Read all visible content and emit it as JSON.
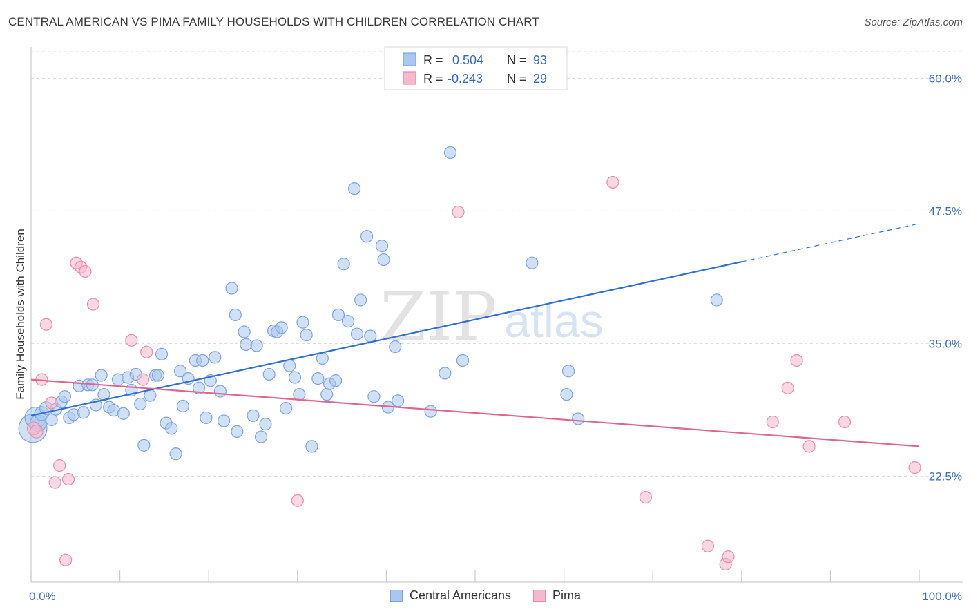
{
  "title": "CENTRAL AMERICAN VS PIMA FAMILY HOUSEHOLDS WITH CHILDREN CORRELATION CHART",
  "source": "Source: ZipAtlas.com",
  "watermark": {
    "zip": "ZIP",
    "atlas": "atlas"
  },
  "colors": {
    "blue": "#a9c8f0",
    "blue_stroke": "#7ba3dc",
    "blue_line": "#2f6fd0",
    "pink": "#f6b8cc",
    "pink_stroke": "#e98aa8",
    "pink_line": "#e06692",
    "tick": "#3c6fc4",
    "grid": "#d8d8d8"
  },
  "legend": {
    "rows": [
      {
        "r_label": "R =",
        "r_value": "0.504",
        "n_label": "N =",
        "n_value": "93",
        "series": "blue"
      },
      {
        "r_label": "R =",
        "r_value": "-0.243",
        "n_label": "N =",
        "n_value": "29",
        "series": "pink"
      }
    ]
  },
  "bottom_legend": {
    "items": [
      {
        "label": "Central Americans",
        "series": "blue"
      },
      {
        "label": "Pima",
        "series": "pink"
      }
    ]
  },
  "chart_data": {
    "type": "scatter",
    "title": "CENTRAL AMERICAN VS PIMA FAMILY HOUSEHOLDS WITH CHILDREN CORRELATION CHART",
    "xlabel": "",
    "ylabel": "Family Households with Children",
    "xlim": [
      0,
      100
    ],
    "ylim": [
      12.5,
      62.5
    ],
    "y_ticks": [
      {
        "v": 22.5,
        "label": "22.5%"
      },
      {
        "v": 35.0,
        "label": "35.0%"
      },
      {
        "v": 47.5,
        "label": "47.5%"
      },
      {
        "v": 60.0,
        "label": "60.0%"
      }
    ],
    "x_ticks": [
      {
        "v": 0,
        "label": "0.0%"
      },
      {
        "v": 100,
        "label": "100.0%"
      }
    ],
    "series": [
      {
        "name": "Central Americans",
        "color": "blue",
        "trend": {
          "x0": 0.0,
          "y0": 28.2,
          "x1": 80.0,
          "y1": 42.7,
          "x_dash_end": 100.0,
          "y_dash_end": 46.3
        },
        "points": [
          {
            "x": 0.2,
            "y": 27.0,
            "s": 2.4
          },
          {
            "x": 0.5,
            "y": 28.0,
            "s": 1.8
          },
          {
            "x": 0.8,
            "y": 27.5,
            "s": 1.4
          },
          {
            "x": 1.2,
            "y": 28.4,
            "s": 1.2
          },
          {
            "x": 1.7,
            "y": 28.9,
            "s": 1.1
          },
          {
            "x": 2.3,
            "y": 27.8,
            "s": 1
          },
          {
            "x": 2.8,
            "y": 28.8,
            "s": 1
          },
          {
            "x": 3.4,
            "y": 29.5,
            "s": 1
          },
          {
            "x": 3.8,
            "y": 30.0,
            "s": 1
          },
          {
            "x": 4.3,
            "y": 28.0,
            "s": 1
          },
          {
            "x": 4.8,
            "y": 28.3,
            "s": 1
          },
          {
            "x": 5.4,
            "y": 31.0,
            "s": 1
          },
          {
            "x": 5.9,
            "y": 28.5,
            "s": 1
          },
          {
            "x": 6.4,
            "y": 31.1,
            "s": 1
          },
          {
            "x": 6.9,
            "y": 31.1,
            "s": 1
          },
          {
            "x": 7.3,
            "y": 29.2,
            "s": 1
          },
          {
            "x": 7.9,
            "y": 32.0,
            "s": 1
          },
          {
            "x": 8.2,
            "y": 30.2,
            "s": 1
          },
          {
            "x": 8.8,
            "y": 29.0,
            "s": 1
          },
          {
            "x": 9.3,
            "y": 28.7,
            "s": 1
          },
          {
            "x": 9.8,
            "y": 31.6,
            "s": 1
          },
          {
            "x": 10.4,
            "y": 28.4,
            "s": 1
          },
          {
            "x": 10.9,
            "y": 31.8,
            "s": 1
          },
          {
            "x": 11.3,
            "y": 30.6,
            "s": 1
          },
          {
            "x": 11.8,
            "y": 32.1,
            "s": 1
          },
          {
            "x": 12.3,
            "y": 29.3,
            "s": 1
          },
          {
            "x": 12.7,
            "y": 25.4,
            "s": 1
          },
          {
            "x": 13.4,
            "y": 30.1,
            "s": 1
          },
          {
            "x": 14.0,
            "y": 32.0,
            "s": 1
          },
          {
            "x": 14.3,
            "y": 32.0,
            "s": 1
          },
          {
            "x": 14.7,
            "y": 34.0,
            "s": 1
          },
          {
            "x": 15.2,
            "y": 27.5,
            "s": 1
          },
          {
            "x": 15.8,
            "y": 27.0,
            "s": 1
          },
          {
            "x": 16.3,
            "y": 24.6,
            "s": 1
          },
          {
            "x": 16.8,
            "y": 32.4,
            "s": 1
          },
          {
            "x": 17.1,
            "y": 29.1,
            "s": 1
          },
          {
            "x": 17.7,
            "y": 31.7,
            "s": 1
          },
          {
            "x": 18.5,
            "y": 33.4,
            "s": 1
          },
          {
            "x": 18.9,
            "y": 30.8,
            "s": 1
          },
          {
            "x": 19.3,
            "y": 33.4,
            "s": 1
          },
          {
            "x": 19.7,
            "y": 28.0,
            "s": 1
          },
          {
            "x": 20.2,
            "y": 31.5,
            "s": 1
          },
          {
            "x": 20.7,
            "y": 33.7,
            "s": 1
          },
          {
            "x": 21.3,
            "y": 30.5,
            "s": 1
          },
          {
            "x": 21.7,
            "y": 27.7,
            "s": 1
          },
          {
            "x": 22.6,
            "y": 40.2,
            "s": 1
          },
          {
            "x": 23.0,
            "y": 37.7,
            "s": 1
          },
          {
            "x": 23.2,
            "y": 26.7,
            "s": 1
          },
          {
            "x": 24.0,
            "y": 36.1,
            "s": 1
          },
          {
            "x": 24.2,
            "y": 34.9,
            "s": 1
          },
          {
            "x": 25.0,
            "y": 28.2,
            "s": 1
          },
          {
            "x": 25.4,
            "y": 34.8,
            "s": 1
          },
          {
            "x": 25.9,
            "y": 26.2,
            "s": 1
          },
          {
            "x": 26.4,
            "y": 27.4,
            "s": 1
          },
          {
            "x": 26.8,
            "y": 32.1,
            "s": 1
          },
          {
            "x": 27.3,
            "y": 36.2,
            "s": 1
          },
          {
            "x": 27.7,
            "y": 36.1,
            "s": 1
          },
          {
            "x": 28.2,
            "y": 36.5,
            "s": 1
          },
          {
            "x": 28.7,
            "y": 28.9,
            "s": 1
          },
          {
            "x": 29.1,
            "y": 32.9,
            "s": 1
          },
          {
            "x": 29.7,
            "y": 31.8,
            "s": 1
          },
          {
            "x": 30.2,
            "y": 30.2,
            "s": 1
          },
          {
            "x": 30.6,
            "y": 37.0,
            "s": 1
          },
          {
            "x": 31.0,
            "y": 35.8,
            "s": 1
          },
          {
            "x": 31.6,
            "y": 25.3,
            "s": 1
          },
          {
            "x": 32.3,
            "y": 31.7,
            "s": 1
          },
          {
            "x": 32.8,
            "y": 33.6,
            "s": 1
          },
          {
            "x": 33.3,
            "y": 30.2,
            "s": 1
          },
          {
            "x": 33.6,
            "y": 31.2,
            "s": 1
          },
          {
            "x": 34.3,
            "y": 31.5,
            "s": 1
          },
          {
            "x": 34.6,
            "y": 37.7,
            "s": 1
          },
          {
            "x": 35.2,
            "y": 42.5,
            "s": 1
          },
          {
            "x": 35.7,
            "y": 37.1,
            "s": 1
          },
          {
            "x": 36.4,
            "y": 49.6,
            "s": 1
          },
          {
            "x": 36.7,
            "y": 35.9,
            "s": 1
          },
          {
            "x": 37.1,
            "y": 39.1,
            "s": 1
          },
          {
            "x": 37.8,
            "y": 45.1,
            "s": 1
          },
          {
            "x": 38.2,
            "y": 35.7,
            "s": 1
          },
          {
            "x": 38.6,
            "y": 30.0,
            "s": 1
          },
          {
            "x": 39.5,
            "y": 44.2,
            "s": 1
          },
          {
            "x": 39.7,
            "y": 42.9,
            "s": 1
          },
          {
            "x": 40.2,
            "y": 29.0,
            "s": 1
          },
          {
            "x": 41.0,
            "y": 34.7,
            "s": 1
          },
          {
            "x": 41.3,
            "y": 29.6,
            "s": 1
          },
          {
            "x": 45.0,
            "y": 28.6,
            "s": 1
          },
          {
            "x": 46.6,
            "y": 32.2,
            "s": 1
          },
          {
            "x": 47.2,
            "y": 53.0,
            "s": 1
          },
          {
            "x": 48.6,
            "y": 33.4,
            "s": 1
          },
          {
            "x": 56.4,
            "y": 42.6,
            "s": 1
          },
          {
            "x": 60.3,
            "y": 30.2,
            "s": 1
          },
          {
            "x": 60.5,
            "y": 32.4,
            "s": 1
          },
          {
            "x": 61.6,
            "y": 27.9,
            "s": 1
          },
          {
            "x": 77.2,
            "y": 39.1,
            "s": 1
          }
        ]
      },
      {
        "name": "Pima",
        "color": "pink",
        "trend": {
          "x0": 0.0,
          "y0": 31.6,
          "x1": 100.0,
          "y1": 25.3
        },
        "points": [
          {
            "x": 0.3,
            "y": 27.0,
            "s": 1.1
          },
          {
            "x": 0.6,
            "y": 26.7,
            "s": 1.1
          },
          {
            "x": 1.2,
            "y": 31.6,
            "s": 1
          },
          {
            "x": 1.7,
            "y": 36.8,
            "s": 1
          },
          {
            "x": 2.3,
            "y": 29.4,
            "s": 1
          },
          {
            "x": 2.7,
            "y": 21.9,
            "s": 1
          },
          {
            "x": 3.2,
            "y": 23.5,
            "s": 1
          },
          {
            "x": 3.9,
            "y": 14.6,
            "s": 1
          },
          {
            "x": 4.2,
            "y": 22.2,
            "s": 1
          },
          {
            "x": 5.1,
            "y": 42.6,
            "s": 1
          },
          {
            "x": 5.6,
            "y": 42.2,
            "s": 1
          },
          {
            "x": 6.1,
            "y": 41.8,
            "s": 1
          },
          {
            "x": 7.0,
            "y": 38.7,
            "s": 1
          },
          {
            "x": 11.3,
            "y": 35.3,
            "s": 1
          },
          {
            "x": 12.6,
            "y": 31.6,
            "s": 1
          },
          {
            "x": 13.0,
            "y": 34.2,
            "s": 1
          },
          {
            "x": 30.0,
            "y": 20.2,
            "s": 1
          },
          {
            "x": 48.1,
            "y": 47.4,
            "s": 1
          },
          {
            "x": 65.5,
            "y": 50.2,
            "s": 1
          },
          {
            "x": 69.2,
            "y": 20.5,
            "s": 1
          },
          {
            "x": 76.2,
            "y": 15.9,
            "s": 1
          },
          {
            "x": 78.2,
            "y": 14.2,
            "s": 1
          },
          {
            "x": 78.5,
            "y": 14.9,
            "s": 1
          },
          {
            "x": 83.5,
            "y": 27.6,
            "s": 1
          },
          {
            "x": 85.2,
            "y": 30.8,
            "s": 1
          },
          {
            "x": 86.2,
            "y": 33.4,
            "s": 1
          },
          {
            "x": 87.6,
            "y": 25.3,
            "s": 1
          },
          {
            "x": 91.6,
            "y": 27.6,
            "s": 1
          },
          {
            "x": 99.5,
            "y": 23.3,
            "s": 1
          }
        ]
      }
    ]
  }
}
